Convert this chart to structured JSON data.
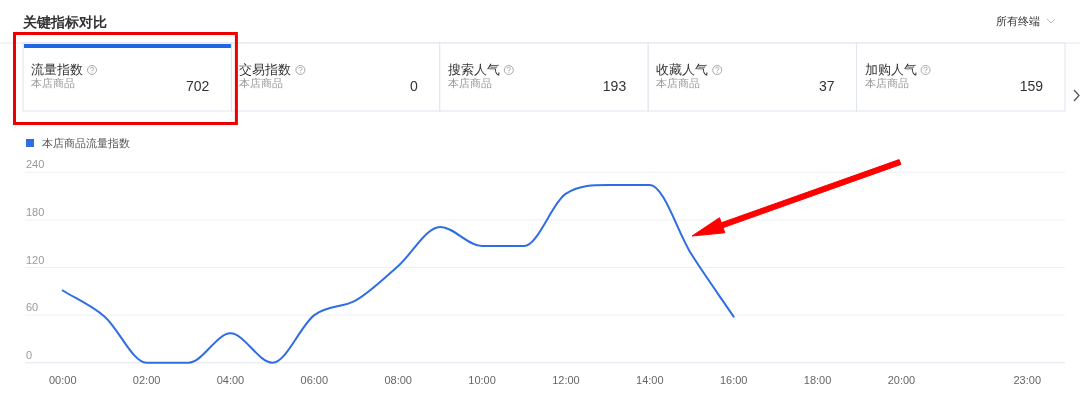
{
  "chart_data": [
    {
      "type": "other",
      "title": "关键指标对比",
      "annotations": [
        "所有终端"
      ]
    },
    {
      "type": "other",
      "title": "流量指数",
      "subtitle": "本店商品",
      "values": [
        702
      ],
      "data_labels": true
    },
    {
      "type": "other",
      "title": "交易指数",
      "subtitle": "本店商品",
      "values": [
        0
      ],
      "data_labels": true
    },
    {
      "type": "other",
      "title": "搜索人气",
      "subtitle": "本店商品",
      "values": [
        193
      ],
      "data_labels": true
    },
    {
      "type": "other",
      "title": "收藏人气",
      "subtitle": "本店商品",
      "values": [
        37
      ],
      "data_labels": true
    },
    {
      "type": "other",
      "title": "加购人气",
      "subtitle": "本店商品",
      "values": [
        159
      ],
      "data_labels": true
    },
    {
      "type": "line",
      "x": [
        0,
        1,
        2,
        3,
        4,
        5,
        6,
        7,
        8,
        9,
        10,
        11,
        12,
        13,
        14,
        15,
        16
      ],
      "series": [
        {
          "name": "本店商品流量指数",
          "color": "#2f6de5",
          "values": [
            91,
            58,
            0,
            0,
            37,
            0,
            60,
            79,
            122,
            171,
            147,
            147,
            213,
            224,
            224,
            136,
            58
          ]
        }
      ],
      "xlim": [
        -0.9,
        23.9
      ],
      "xticks": [
        {
          "value": 0,
          "label": "00:00"
        },
        {
          "value": 2,
          "label": "02:00"
        },
        {
          "value": 4,
          "label": "04:00"
        },
        {
          "value": 6,
          "label": "06:00"
        },
        {
          "value": 8,
          "label": "08:00"
        },
        {
          "value": 10,
          "label": "10:00"
        },
        {
          "value": 12,
          "label": "12:00"
        },
        {
          "value": 14,
          "label": "14:00"
        },
        {
          "value": 16,
          "label": "16:00"
        },
        {
          "value": 18,
          "label": "18:00"
        },
        {
          "value": 20,
          "label": "20:00"
        },
        {
          "value": 23,
          "label": "23:00"
        }
      ],
      "ylim": [
        0,
        240
      ],
      "yticks": [
        0,
        60,
        120,
        180,
        240
      ],
      "grid": "y",
      "legend": "top left",
      "line_style": "solid"
    }
  ]
}
